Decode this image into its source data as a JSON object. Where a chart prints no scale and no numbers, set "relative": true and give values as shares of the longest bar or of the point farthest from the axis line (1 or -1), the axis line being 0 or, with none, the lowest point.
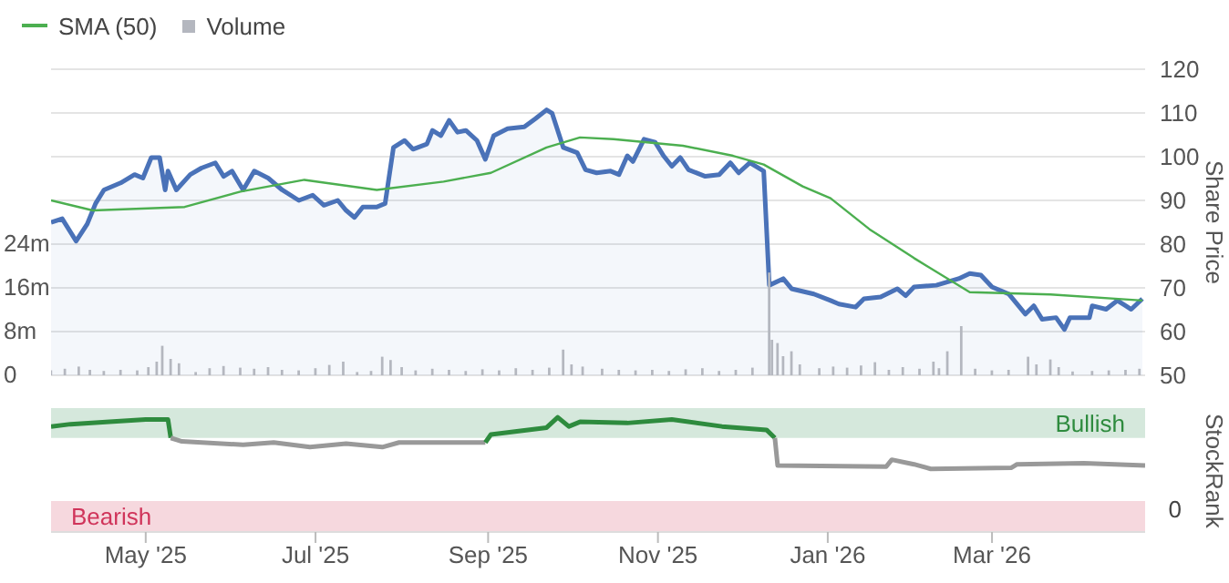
{
  "chart_data": [
    {
      "type": "area",
      "legend": "top left",
      "grid": "y",
      "ylabel": "Share Price",
      "tick_labels": "y",
      "xlim": [
        "2025-03-28",
        "2026-04-25"
      ],
      "ylim": [
        50,
        120
      ],
      "yticks": [
        50,
        60,
        70,
        80,
        90,
        100,
        110,
        120
      ],
      "y2lim": [
        0,
        56000000
      ],
      "y2ticks": [
        0,
        {
          "value": 8000000,
          "label": "8m"
        },
        {
          "value": 16000000,
          "label": "16m"
        },
        {
          "value": 24000000,
          "label": "24m"
        }
      ],
      "series": [
        {
          "type": "bar",
          "name": "Volume",
          "axis": "y2",
          "color": "#b4b7bf",
          "x": [
            "2025-03-28",
            "2025-04-02",
            "2025-04-07",
            "2025-04-11",
            "2025-04-16",
            "2025-04-22",
            "2025-04-28",
            "2025-05-02",
            "2025-05-05",
            "2025-05-07",
            "2025-05-10",
            "2025-05-13",
            "2025-05-19",
            "2025-05-24",
            "2025-05-29",
            "2025-06-04",
            "2025-06-09",
            "2025-06-14",
            "2025-06-19",
            "2025-06-25",
            "2025-07-01",
            "2025-07-06",
            "2025-07-11",
            "2025-07-16",
            "2025-07-21",
            "2025-07-25",
            "2025-07-28",
            "2025-08-01",
            "2025-08-06",
            "2025-08-12",
            "2025-08-18",
            "2025-08-24",
            "2025-08-30",
            "2025-09-05",
            "2025-09-11",
            "2025-09-17",
            "2025-09-23",
            "2025-09-28",
            "2025-10-01",
            "2025-10-05",
            "2025-10-12",
            "2025-10-18",
            "2025-10-24",
            "2025-10-30",
            "2025-11-05",
            "2025-11-11",
            "2025-11-17",
            "2025-11-23",
            "2025-11-29",
            "2025-12-05",
            "2025-12-11",
            "2025-12-12",
            "2025-12-14",
            "2025-12-16",
            "2025-12-19",
            "2025-12-22",
            "2025-12-29",
            "2026-01-03",
            "2026-01-08",
            "2026-01-13",
            "2026-01-18",
            "2026-01-23",
            "2026-01-28",
            "2026-02-03",
            "2026-02-08",
            "2026-02-10",
            "2026-02-13",
            "2026-02-18",
            "2026-02-23",
            "2026-03-01",
            "2026-03-07",
            "2026-03-14",
            "2026-03-17",
            "2026-03-22",
            "2026-03-25",
            "2026-03-30",
            "2026-04-06",
            "2026-04-12",
            "2026-04-18",
            "2026-04-23"
          ],
          "values": [
            900000,
            1200000,
            1600000,
            1000000,
            800000,
            1000000,
            900000,
            1500000,
            2500000,
            5400000,
            3000000,
            2200000,
            600000,
            1300000,
            1700000,
            1400000,
            1200000,
            1500000,
            1000000,
            900000,
            1300000,
            1900000,
            2500000,
            600000,
            800000,
            3400000,
            2800000,
            1500000,
            900000,
            1200000,
            1000000,
            800000,
            1100000,
            900000,
            1300000,
            1000000,
            1400000,
            4700000,
            2000000,
            1600000,
            1200000,
            1000000,
            900000,
            1000000,
            800000,
            1100000,
            1300000,
            800000,
            1000000,
            1400000,
            18800000,
            6500000,
            5900000,
            3500000,
            4400000,
            2000000,
            1300000,
            1600000,
            1400000,
            1800000,
            2400000,
            1000000,
            1500000,
            1200000,
            2500000,
            1300000,
            4400000,
            9000000,
            1200000,
            900000,
            1000000,
            3400000,
            2000000,
            2900000,
            1500000,
            700000,
            800000,
            900000,
            1000000,
            1200000
          ]
        },
        {
          "color": "#4a72b8",
          "x": [
            "2025-03-28",
            "2025-04-01",
            "2025-04-06",
            "2025-04-10",
            "2025-04-13",
            "2025-04-16",
            "2025-04-22",
            "2025-04-27",
            "2025-04-30",
            "2025-05-03",
            "2025-05-06",
            "2025-05-08",
            "2025-05-09",
            "2025-05-12",
            "2025-05-17",
            "2025-05-21",
            "2025-05-26",
            "2025-05-29",
            "2025-06-01",
            "2025-06-05",
            "2025-06-09",
            "2025-06-14",
            "2025-06-19",
            "2025-06-25",
            "2025-06-30",
            "2025-07-04",
            "2025-07-09",
            "2025-07-12",
            "2025-07-15",
            "2025-07-18",
            "2025-07-23",
            "2025-07-26",
            "2025-07-29",
            "2025-08-02",
            "2025-08-05",
            "2025-08-10",
            "2025-08-12",
            "2025-08-15",
            "2025-08-18",
            "2025-08-21",
            "2025-08-24",
            "2025-08-28",
            "2025-08-31",
            "2025-09-03",
            "2025-09-08",
            "2025-09-14",
            "2025-09-18",
            "2025-09-22",
            "2025-09-24",
            "2025-09-28",
            "2025-10-03",
            "2025-10-06",
            "2025-10-10",
            "2025-10-15",
            "2025-10-18",
            "2025-10-21",
            "2025-10-23",
            "2025-10-27",
            "2025-10-31",
            "2025-11-03",
            "2025-11-06",
            "2025-11-09",
            "2025-11-12",
            "2025-11-18",
            "2025-11-23",
            "2025-11-27",
            "2025-11-30",
            "2025-12-04",
            "2025-12-09",
            "2025-12-11",
            "2025-12-16",
            "2025-12-19",
            "2025-12-27",
            "2026-01-02",
            "2026-01-05",
            "2026-01-11",
            "2026-01-14",
            "2026-01-20",
            "2026-01-26",
            "2026-01-29",
            "2026-02-01",
            "2026-02-09",
            "2026-02-17",
            "2026-02-21",
            "2026-02-25",
            "2026-03-01",
            "2026-03-07",
            "2026-03-13",
            "2026-03-16",
            "2026-03-19",
            "2026-03-24",
            "2026-03-27",
            "2026-03-29",
            "2026-04-05",
            "2026-04-06",
            "2026-04-11",
            "2026-04-15",
            "2026-04-18",
            "2026-04-20",
            "2026-04-24"
          ],
          "values": [
            85,
            85.8,
            80.7,
            84.6,
            89.3,
            92.4,
            94,
            95.9,
            95.1,
            99.8,
            99.8,
            92.4,
            96.7,
            92.4,
            95.9,
            97.4,
            98.6,
            95.5,
            96.7,
            92.4,
            96.7,
            95.1,
            92.4,
            90,
            91.2,
            88.9,
            90,
            87.7,
            86.1,
            88.5,
            88.5,
            89.3,
            102.1,
            103.7,
            101.7,
            102.9,
            106,
            104.8,
            108.3,
            105.6,
            106,
            103.7,
            99.4,
            104.8,
            106.4,
            106.8,
            108.7,
            110.7,
            109.9,
            102.1,
            100.9,
            97,
            96.3,
            96.7,
            95.9,
            100.2,
            98.9,
            104,
            103.3,
            100.2,
            97.8,
            99.8,
            97,
            95.5,
            95.9,
            98.6,
            96.3,
            98.6,
            96.7,
            70.6,
            72.1,
            69.8,
            68.6,
            67.1,
            66.3,
            65.6,
            67.5,
            67.9,
            69.8,
            68.2,
            70.2,
            70.6,
            72.1,
            73.3,
            72.9,
            70.2,
            68.6,
            64,
            65.9,
            62.8,
            63.2,
            60.5,
            63.2,
            63.2,
            65.9,
            65.1,
            67.1,
            65.9,
            65.1,
            67.5
          ]
        },
        {
          "type": "line",
          "name": "SMA (50)",
          "color": "#4caf50",
          "x": [
            "2025-03-28",
            "2025-04-12",
            "2025-05-15",
            "2025-06-04",
            "2025-06-27",
            "2025-07-23",
            "2025-08-16",
            "2025-09-02",
            "2025-09-22",
            "2025-10-04",
            "2025-10-16",
            "2025-11-10",
            "2025-11-28",
            "2025-12-09",
            "2025-12-23",
            "2026-01-02",
            "2026-01-16",
            "2026-02-01",
            "2026-02-21",
            "2026-03-22",
            "2026-04-24"
          ],
          "values": [
            90,
            87.7,
            88.5,
            92,
            94.7,
            92.4,
            94.3,
            96.3,
            102.1,
            104.4,
            104,
            102.5,
            100.2,
            98.2,
            93.2,
            90.5,
            83.4,
            76.8,
            69,
            68.5,
            67.1
          ]
        }
      ]
    },
    {
      "type": "line",
      "relative": true,
      "ylabel": "StockRank",
      "tick_labels": "x",
      "xlim": [
        "2025-03-28",
        "2026-04-25"
      ],
      "xticks": [
        {
          "value": "2025-05-01",
          "label": "May '25"
        },
        {
          "value": "2025-07-01",
          "label": "Jul '25"
        },
        {
          "value": "2025-09-01",
          "label": "Sep '25"
        },
        {
          "value": "2025-11-01",
          "label": "Nov '25"
        },
        {
          "value": "2026-01-01",
          "label": "Jan '26"
        },
        {
          "value": "2026-03-01",
          "label": "Mar '26"
        }
      ],
      "bands": [
        {
          "axis": "y",
          "from": 0.82,
          "to": 1.08,
          "label": "Bullish",
          "color": "#d5e8dc"
        },
        {
          "axis": "y",
          "from": 0,
          "to": 0.27,
          "label": "Bearish",
          "color": "#f6d8de"
        }
      ],
      "annotations": [
        "0"
      ],
      "series": [
        {
          "color": "#2e8b3e",
          "x": [
            "2025-03-28",
            "2025-04-04",
            "2025-04-18",
            "2025-05-01",
            "2025-05-09",
            "2025-05-10"
          ],
          "values": [
            0.92,
            0.94,
            0.96,
            0.98,
            0.98,
            0.82
          ]
        },
        {
          "color": "#999999",
          "x": [
            "2025-05-10",
            "2025-05-14",
            "2025-06-05",
            "2025-06-16",
            "2025-06-29",
            "2025-07-12",
            "2025-07-25",
            "2025-07-31",
            "2025-08-31"
          ],
          "values": [
            0.82,
            0.79,
            0.76,
            0.78,
            0.74,
            0.77,
            0.74,
            0.78,
            0.78
          ]
        },
        {
          "color": "#2e8b3e",
          "x": [
            "2025-08-31",
            "2025-09-02",
            "2025-09-22",
            "2025-09-26",
            "2025-09-30",
            "2025-10-04",
            "2025-10-21",
            "2025-11-06",
            "2025-11-24",
            "2025-12-10",
            "2025-12-13"
          ],
          "values": [
            0.78,
            0.85,
            0.91,
            1,
            0.92,
            0.96,
            0.95,
            0.98,
            0.92,
            0.89,
            0.82
          ]
        },
        {
          "color": "#999999",
          "x": [
            "2025-12-13",
            "2025-12-14",
            "2026-01-22",
            "2026-01-24",
            "2026-02-01",
            "2026-02-07",
            "2026-03-08",
            "2026-03-10",
            "2026-04-03",
            "2026-04-25"
          ],
          "values": [
            0.82,
            0.58,
            0.57,
            0.63,
            0.59,
            0.55,
            0.56,
            0.59,
            0.6,
            0.58
          ]
        }
      ]
    }
  ]
}
